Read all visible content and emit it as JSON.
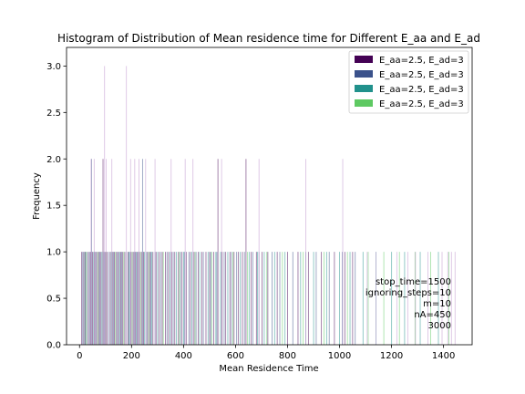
{
  "chart_data": {
    "type": "bar",
    "title": "Histogram of Distribution of Mean residence time for Different E_aa and E_ad",
    "xlabel": "Mean Residence Time",
    "ylabel": "Frequency",
    "xlim": [
      -50,
      1510
    ],
    "ylim": [
      0,
      3.2
    ],
    "x_ticks": [
      0,
      200,
      400,
      600,
      800,
      1000,
      1200,
      1400
    ],
    "x_tick_labels": [
      "0",
      "200",
      "400",
      "600",
      "800",
      "1000",
      "1200",
      "1400"
    ],
    "y_ticks": [
      0.0,
      0.5,
      1.0,
      1.5,
      2.0,
      2.5,
      3.0
    ],
    "y_tick_labels": [
      "0.0",
      "0.5",
      "1.0",
      "1.5",
      "2.0",
      "2.5",
      "3.0"
    ],
    "grid": false,
    "legend_position": "top-right",
    "series": [
      {
        "name": "E_aa=2.5, E_ad=3",
        "color": "#440154",
        "bins": [
          [
            8,
            1
          ],
          [
            16,
            1
          ],
          [
            22,
            1
          ],
          [
            34,
            1
          ],
          [
            42,
            1
          ],
          [
            50,
            1
          ],
          [
            58,
            1
          ],
          [
            66,
            1
          ],
          [
            74,
            1
          ],
          [
            82,
            1
          ],
          [
            90,
            2
          ],
          [
            98,
            1
          ],
          [
            106,
            1
          ],
          [
            118,
            1
          ],
          [
            126,
            1
          ],
          [
            134,
            1
          ],
          [
            142,
            1
          ],
          [
            150,
            1
          ],
          [
            158,
            1
          ],
          [
            166,
            1
          ],
          [
            174,
            1
          ],
          [
            186,
            1
          ],
          [
            198,
            1
          ],
          [
            206,
            1
          ],
          [
            214,
            1
          ],
          [
            222,
            1
          ],
          [
            230,
            1
          ],
          [
            238,
            1
          ],
          [
            246,
            1
          ],
          [
            262,
            1
          ],
          [
            270,
            1
          ],
          [
            282,
            1
          ],
          [
            294,
            1
          ],
          [
            306,
            1
          ],
          [
            318,
            1
          ],
          [
            330,
            1
          ],
          [
            342,
            1
          ],
          [
            354,
            1
          ],
          [
            366,
            1
          ],
          [
            380,
            1
          ],
          [
            394,
            1
          ],
          [
            410,
            1
          ],
          [
            426,
            1
          ],
          [
            440,
            1
          ],
          [
            456,
            1
          ],
          [
            470,
            1
          ],
          [
            486,
            1
          ],
          [
            500,
            1
          ],
          [
            516,
            1
          ],
          [
            532,
            2
          ],
          [
            548,
            1
          ],
          [
            562,
            1
          ],
          [
            578,
            1
          ],
          [
            594,
            1
          ],
          [
            610,
            1
          ],
          [
            626,
            1
          ],
          [
            640,
            2
          ],
          [
            660,
            1
          ],
          [
            680,
            1
          ],
          [
            702,
            1
          ],
          [
            724,
            1
          ],
          [
            760,
            1
          ],
          [
            800,
            1
          ],
          [
            840,
            1
          ],
          [
            880,
            1
          ],
          [
            930,
            1
          ],
          [
            980,
            1
          ],
          [
            1020,
            1
          ],
          [
            1050,
            1
          ]
        ]
      },
      {
        "name": "E_aa=2.5, E_ad=3",
        "color": "#3b528b",
        "bins": [
          [
            12,
            1
          ],
          [
            28,
            1
          ],
          [
            38,
            1
          ],
          [
            46,
            2
          ],
          [
            62,
            1
          ],
          [
            78,
            1
          ],
          [
            94,
            1
          ],
          [
            112,
            1
          ],
          [
            130,
            1
          ],
          [
            146,
            1
          ],
          [
            162,
            1
          ],
          [
            180,
            1
          ],
          [
            192,
            1
          ],
          [
            210,
            1
          ],
          [
            226,
            1
          ],
          [
            242,
            2
          ],
          [
            258,
            1
          ],
          [
            274,
            1
          ],
          [
            290,
            1
          ],
          [
            312,
            1
          ],
          [
            336,
            1
          ],
          [
            360,
            1
          ],
          [
            388,
            1
          ],
          [
            404,
            1
          ],
          [
            420,
            1
          ],
          [
            448,
            1
          ],
          [
            476,
            1
          ],
          [
            504,
            1
          ],
          [
            528,
            1
          ],
          [
            556,
            1
          ],
          [
            584,
            1
          ],
          [
            604,
            1
          ],
          [
            634,
            1
          ],
          [
            666,
            1
          ],
          [
            690,
            1
          ],
          [
            740,
            1
          ],
          [
            770,
            1
          ],
          [
            820,
            1
          ],
          [
            870,
            1
          ],
          [
            910,
            1
          ],
          [
            960,
            1
          ],
          [
            1010,
            1
          ],
          [
            1060,
            1
          ]
        ]
      },
      {
        "name": "E_aa=2.5, E_ad=3",
        "color": "#21918c",
        "bins": [
          [
            20,
            1
          ],
          [
            54,
            1
          ],
          [
            86,
            1
          ],
          [
            122,
            1
          ],
          [
            154,
            1
          ],
          [
            190,
            1
          ],
          [
            218,
            1
          ],
          [
            250,
            1
          ],
          [
            278,
            1
          ],
          [
            300,
            1
          ],
          [
            348,
            1
          ],
          [
            372,
            1
          ],
          [
            400,
            1
          ],
          [
            432,
            1
          ],
          [
            462,
            1
          ],
          [
            494,
            1
          ],
          [
            524,
            1
          ],
          [
            542,
            1
          ],
          [
            570,
            1
          ],
          [
            618,
            1
          ],
          [
            652,
            1
          ],
          [
            684,
            1
          ],
          [
            710,
            1
          ],
          [
            750,
            1
          ],
          [
            790,
            1
          ],
          [
            850,
            1
          ],
          [
            900,
            1
          ],
          [
            950,
            1
          ],
          [
            1000,
            1
          ],
          [
            1040,
            1
          ],
          [
            1090,
            1
          ],
          [
            1140,
            1
          ],
          [
            1200,
            1
          ],
          [
            1250,
            1
          ],
          [
            1310,
            1
          ],
          [
            1380,
            1
          ]
        ]
      },
      {
        "name": "E_aa=2.5, E_ad=3",
        "color": "#5ec962",
        "bins": [
          [
            26,
            1
          ],
          [
            70,
            1
          ],
          [
            102,
            1
          ],
          [
            138,
            1
          ],
          [
            170,
            1
          ],
          [
            202,
            1
          ],
          [
            234,
            1
          ],
          [
            266,
            1
          ],
          [
            322,
            1
          ],
          [
            384,
            1
          ],
          [
            444,
            1
          ],
          [
            508,
            1
          ],
          [
            590,
            1
          ],
          [
            646,
            1
          ],
          [
            720,
            1
          ],
          [
            780,
            1
          ],
          [
            860,
            1
          ],
          [
            940,
            1
          ],
          [
            1030,
            1
          ],
          [
            1110,
            1
          ],
          [
            1170,
            1
          ],
          [
            1230,
            1
          ],
          [
            1290,
            1
          ],
          [
            1350,
            1
          ],
          [
            1420,
            1
          ]
        ]
      },
      {
        "name": "E_aa=2.5, E_ad=3",
        "color": "#c9a7d6",
        "bins": [
          [
            44,
            2
          ],
          [
            56,
            2
          ],
          [
            96,
            3
          ],
          [
            102,
            2
          ],
          [
            124,
            2
          ],
          [
            180,
            3
          ],
          [
            196,
            2
          ],
          [
            212,
            2
          ],
          [
            228,
            2
          ],
          [
            254,
            2
          ],
          [
            290,
            2
          ],
          [
            352,
            2
          ],
          [
            406,
            2
          ],
          [
            436,
            2
          ],
          [
            546,
            2
          ],
          [
            690,
            2
          ],
          [
            870,
            2
          ],
          [
            1012,
            2
          ],
          [
            1106,
            1
          ],
          [
            1140,
            1
          ],
          [
            1220,
            1
          ],
          [
            1262,
            1
          ],
          [
            1292,
            1
          ],
          [
            1340,
            1
          ],
          [
            1394,
            1
          ],
          [
            1416,
            1
          ],
          [
            1430,
            1
          ],
          [
            1444,
            1
          ]
        ]
      }
    ],
    "annotation": [
      "stop_time=1500",
      "ignoring_steps=10",
      "m=10",
      "nA=450",
      "3000"
    ]
  }
}
